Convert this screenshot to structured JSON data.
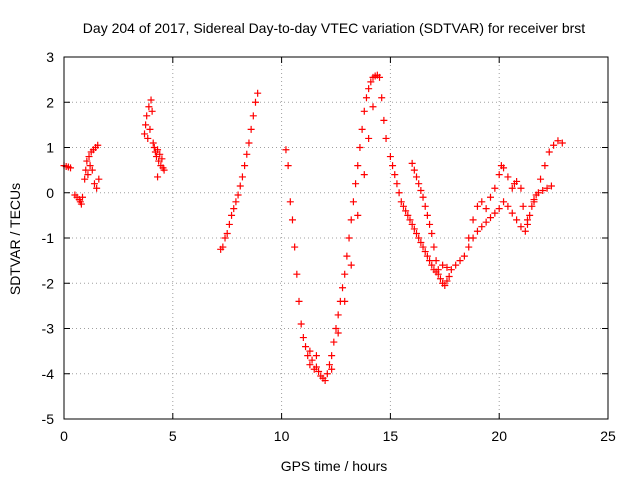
{
  "chart_data": {
    "type": "scatter",
    "title": "Day 204 of 2017, Sidereal Day-to-day VTEC variation (SDTVAR) for receiver brst",
    "xlabel": "GPS time / hours",
    "ylabel": "SDTVAR / TECUs",
    "xlim": [
      0,
      25
    ],
    "ylim": [
      -5,
      3
    ],
    "xticks": [
      0,
      5,
      10,
      15,
      20,
      25
    ],
    "yticks": [
      -5,
      -4,
      -3,
      -2,
      -1,
      0,
      1,
      2,
      3
    ],
    "grid": true,
    "marker": "plus",
    "color": "#ff0000",
    "series": [
      {
        "values": [
          {
            "x": 0.0,
            "y": 0.6
          },
          {
            "x": 0.1,
            "y": 0.58
          },
          {
            "x": 0.2,
            "y": 0.57
          },
          {
            "x": 0.3,
            "y": 0.55
          },
          {
            "x": 0.5,
            "y": -0.05
          },
          {
            "x": 0.6,
            "y": -0.1
          },
          {
            "x": 0.7,
            "y": -0.15
          },
          {
            "x": 0.75,
            "y": -0.2
          },
          {
            "x": 0.8,
            "y": -0.25
          },
          {
            "x": 0.85,
            "y": -0.1
          },
          {
            "x": 0.95,
            "y": 0.3
          },
          {
            "x": 1.0,
            "y": 0.5
          },
          {
            "x": 1.05,
            "y": 0.7
          },
          {
            "x": 1.1,
            "y": 0.4
          },
          {
            "x": 1.15,
            "y": 0.8
          },
          {
            "x": 1.2,
            "y": 0.6
          },
          {
            "x": 1.25,
            "y": 0.9
          },
          {
            "x": 1.3,
            "y": 0.5
          },
          {
            "x": 1.35,
            "y": 0.95
          },
          {
            "x": 1.4,
            "y": 0.2
          },
          {
            "x": 1.45,
            "y": 1.0
          },
          {
            "x": 1.5,
            "y": 0.1
          },
          {
            "x": 1.55,
            "y": 1.05
          },
          {
            "x": 1.6,
            "y": 0.3
          },
          {
            "x": 3.7,
            "y": 1.3
          },
          {
            "x": 3.75,
            "y": 1.5
          },
          {
            "x": 3.8,
            "y": 1.7
          },
          {
            "x": 3.85,
            "y": 1.2
          },
          {
            "x": 3.9,
            "y": 1.9
          },
          {
            "x": 3.95,
            "y": 1.4
          },
          {
            "x": 4.0,
            "y": 2.05
          },
          {
            "x": 4.05,
            "y": 1.8
          },
          {
            "x": 4.1,
            "y": 1.1
          },
          {
            "x": 4.15,
            "y": 1.0
          },
          {
            "x": 4.2,
            "y": 0.9
          },
          {
            "x": 4.25,
            "y": 0.8
          },
          {
            "x": 4.3,
            "y": 0.95
          },
          {
            "x": 4.35,
            "y": 0.7
          },
          {
            "x": 4.4,
            "y": 0.85
          },
          {
            "x": 4.45,
            "y": 0.6
          },
          {
            "x": 4.5,
            "y": 0.75
          },
          {
            "x": 4.55,
            "y": 0.55
          },
          {
            "x": 4.6,
            "y": 0.5
          },
          {
            "x": 4.3,
            "y": 0.35
          },
          {
            "x": 7.2,
            "y": -1.25
          },
          {
            "x": 7.3,
            "y": -1.2
          },
          {
            "x": 7.4,
            "y": -1.0
          },
          {
            "x": 7.5,
            "y": -0.9
          },
          {
            "x": 7.6,
            "y": -0.7
          },
          {
            "x": 7.7,
            "y": -0.5
          },
          {
            "x": 7.8,
            "y": -0.35
          },
          {
            "x": 7.9,
            "y": -0.2
          },
          {
            "x": 8.0,
            "y": -0.05
          },
          {
            "x": 8.1,
            "y": 0.15
          },
          {
            "x": 8.2,
            "y": 0.35
          },
          {
            "x": 8.3,
            "y": 0.6
          },
          {
            "x": 8.4,
            "y": 0.85
          },
          {
            "x": 8.5,
            "y": 1.1
          },
          {
            "x": 8.6,
            "y": 1.4
          },
          {
            "x": 8.7,
            "y": 1.7
          },
          {
            "x": 8.8,
            "y": 2.0
          },
          {
            "x": 8.9,
            "y": 2.2
          },
          {
            "x": 10.2,
            "y": 0.95
          },
          {
            "x": 10.3,
            "y": 0.6
          },
          {
            "x": 10.4,
            "y": -0.2
          },
          {
            "x": 10.5,
            "y": -0.6
          },
          {
            "x": 10.6,
            "y": -1.2
          },
          {
            "x": 10.7,
            "y": -1.8
          },
          {
            "x": 10.8,
            "y": -2.4
          },
          {
            "x": 10.9,
            "y": -2.9
          },
          {
            "x": 11.0,
            "y": -3.2
          },
          {
            "x": 11.1,
            "y": -3.4
          },
          {
            "x": 11.2,
            "y": -3.6
          },
          {
            "x": 11.3,
            "y": -3.5
          },
          {
            "x": 11.4,
            "y": -3.7
          },
          {
            "x": 11.5,
            "y": -3.9
          },
          {
            "x": 11.6,
            "y": -3.85
          },
          {
            "x": 11.7,
            "y": -3.95
          },
          {
            "x": 11.8,
            "y": -4.05
          },
          {
            "x": 11.9,
            "y": -4.1
          },
          {
            "x": 12.0,
            "y": -4.15
          },
          {
            "x": 12.1,
            "y": -4.0
          },
          {
            "x": 12.2,
            "y": -3.8
          },
          {
            "x": 12.3,
            "y": -3.6
          },
          {
            "x": 12.4,
            "y": -3.3
          },
          {
            "x": 12.5,
            "y": -3.0
          },
          {
            "x": 12.6,
            "y": -2.7
          },
          {
            "x": 12.7,
            "y": -2.4
          },
          {
            "x": 12.8,
            "y": -2.1
          },
          {
            "x": 12.9,
            "y": -1.8
          },
          {
            "x": 13.0,
            "y": -1.4
          },
          {
            "x": 13.1,
            "y": -1.0
          },
          {
            "x": 13.2,
            "y": -0.6
          },
          {
            "x": 13.3,
            "y": -0.2
          },
          {
            "x": 13.4,
            "y": 0.2
          },
          {
            "x": 13.5,
            "y": 0.6
          },
          {
            "x": 13.6,
            "y": 1.0
          },
          {
            "x": 13.7,
            "y": 1.4
          },
          {
            "x": 13.8,
            "y": 1.8
          },
          {
            "x": 13.9,
            "y": 2.1
          },
          {
            "x": 14.0,
            "y": 2.3
          },
          {
            "x": 14.1,
            "y": 2.45
          },
          {
            "x": 14.2,
            "y": 2.55
          },
          {
            "x": 14.3,
            "y": 2.58
          },
          {
            "x": 14.4,
            "y": 2.6
          },
          {
            "x": 14.5,
            "y": 2.55
          },
          {
            "x": 14.6,
            "y": 2.1
          },
          {
            "x": 14.7,
            "y": 1.6
          },
          {
            "x": 14.8,
            "y": 1.2
          },
          {
            "x": 11.3,
            "y": -3.8
          },
          {
            "x": 11.6,
            "y": -3.6
          },
          {
            "x": 12.3,
            "y": -3.9
          },
          {
            "x": 12.6,
            "y": -3.1
          },
          {
            "x": 12.9,
            "y": -2.4
          },
          {
            "x": 13.2,
            "y": -1.6
          },
          {
            "x": 13.5,
            "y": -0.5
          },
          {
            "x": 13.8,
            "y": 0.4
          },
          {
            "x": 14.0,
            "y": 1.2
          },
          {
            "x": 14.2,
            "y": 1.9
          },
          {
            "x": 15.0,
            "y": 0.8
          },
          {
            "x": 15.1,
            "y": 0.6
          },
          {
            "x": 15.2,
            "y": 0.4
          },
          {
            "x": 15.3,
            "y": 0.2
          },
          {
            "x": 15.4,
            "y": 0.0
          },
          {
            "x": 15.5,
            "y": -0.2
          },
          {
            "x": 15.6,
            "y": -0.3
          },
          {
            "x": 15.7,
            "y": -0.4
          },
          {
            "x": 15.8,
            "y": -0.5
          },
          {
            "x": 15.9,
            "y": -0.6
          },
          {
            "x": 16.0,
            "y": -0.7
          },
          {
            "x": 16.1,
            "y": -0.8
          },
          {
            "x": 16.2,
            "y": -0.9
          },
          {
            "x": 16.3,
            "y": -1.0
          },
          {
            "x": 16.4,
            "y": -1.1
          },
          {
            "x": 16.5,
            "y": -1.2
          },
          {
            "x": 16.6,
            "y": -1.3
          },
          {
            "x": 16.7,
            "y": -1.4
          },
          {
            "x": 16.8,
            "y": -1.5
          },
          {
            "x": 16.9,
            "y": -1.6
          },
          {
            "x": 17.0,
            "y": -1.7
          },
          {
            "x": 17.1,
            "y": -1.75
          },
          {
            "x": 16.0,
            "y": 0.65
          },
          {
            "x": 16.1,
            "y": 0.5
          },
          {
            "x": 16.2,
            "y": 0.35
          },
          {
            "x": 16.3,
            "y": 0.2
          },
          {
            "x": 16.4,
            "y": 0.05
          },
          {
            "x": 16.5,
            "y": -0.1
          },
          {
            "x": 16.6,
            "y": -0.3
          },
          {
            "x": 16.7,
            "y": -0.5
          },
          {
            "x": 16.8,
            "y": -0.7
          },
          {
            "x": 16.9,
            "y": -0.9
          },
          {
            "x": 17.0,
            "y": -1.2
          },
          {
            "x": 17.1,
            "y": -1.5
          },
          {
            "x": 17.2,
            "y": -1.8
          },
          {
            "x": 17.3,
            "y": -1.9
          },
          {
            "x": 17.4,
            "y": -2.0
          },
          {
            "x": 17.5,
            "y": -2.05
          },
          {
            "x": 17.6,
            "y": -1.95
          },
          {
            "x": 17.7,
            "y": -1.85
          },
          {
            "x": 17.2,
            "y": -1.7
          },
          {
            "x": 17.4,
            "y": -1.6
          },
          {
            "x": 17.6,
            "y": -1.65
          },
          {
            "x": 17.8,
            "y": -1.7
          },
          {
            "x": 18.0,
            "y": -1.6
          },
          {
            "x": 18.2,
            "y": -1.5
          },
          {
            "x": 18.4,
            "y": -1.4
          },
          {
            "x": 18.6,
            "y": -1.2
          },
          {
            "x": 18.8,
            "y": -1.0
          },
          {
            "x": 19.0,
            "y": -0.85
          },
          {
            "x": 19.2,
            "y": -0.75
          },
          {
            "x": 19.4,
            "y": -0.65
          },
          {
            "x": 19.6,
            "y": -0.55
          },
          {
            "x": 19.8,
            "y": -0.45
          },
          {
            "x": 20.0,
            "y": -0.35
          },
          {
            "x": 20.2,
            "y": -0.2
          },
          {
            "x": 20.4,
            "y": -0.3
          },
          {
            "x": 20.6,
            "y": -0.45
          },
          {
            "x": 20.8,
            "y": -0.6
          },
          {
            "x": 21.0,
            "y": -0.75
          },
          {
            "x": 21.2,
            "y": -0.85
          },
          {
            "x": 21.3,
            "y": -0.7
          },
          {
            "x": 21.4,
            "y": -0.5
          },
          {
            "x": 21.5,
            "y": -0.3
          },
          {
            "x": 21.6,
            "y": -0.15
          },
          {
            "x": 21.7,
            "y": -0.05
          },
          {
            "x": 21.8,
            "y": 0.0
          },
          {
            "x": 22.0,
            "y": 0.05
          },
          {
            "x": 22.2,
            "y": 0.1
          },
          {
            "x": 22.4,
            "y": 0.15
          },
          {
            "x": 18.6,
            "y": -1.0
          },
          {
            "x": 18.8,
            "y": -0.6
          },
          {
            "x": 19.0,
            "y": -0.3
          },
          {
            "x": 19.2,
            "y": -0.2
          },
          {
            "x": 19.4,
            "y": -0.35
          },
          {
            "x": 19.6,
            "y": -0.1
          },
          {
            "x": 19.8,
            "y": 0.1
          },
          {
            "x": 20.0,
            "y": 0.4
          },
          {
            "x": 20.1,
            "y": 0.6
          },
          {
            "x": 20.2,
            "y": 0.55
          },
          {
            "x": 20.4,
            "y": 0.35
          },
          {
            "x": 20.6,
            "y": 0.1
          },
          {
            "x": 20.7,
            "y": 0.2
          },
          {
            "x": 20.8,
            "y": 0.25
          },
          {
            "x": 21.0,
            "y": 0.1
          },
          {
            "x": 21.1,
            "y": -0.3
          },
          {
            "x": 21.3,
            "y": -0.6
          },
          {
            "x": 21.6,
            "y": -0.2
          },
          {
            "x": 21.9,
            "y": 0.3
          },
          {
            "x": 22.1,
            "y": 0.6
          },
          {
            "x": 22.3,
            "y": 0.9
          },
          {
            "x": 22.5,
            "y": 1.05
          },
          {
            "x": 22.7,
            "y": 1.15
          },
          {
            "x": 22.9,
            "y": 1.1
          }
        ]
      }
    ]
  }
}
